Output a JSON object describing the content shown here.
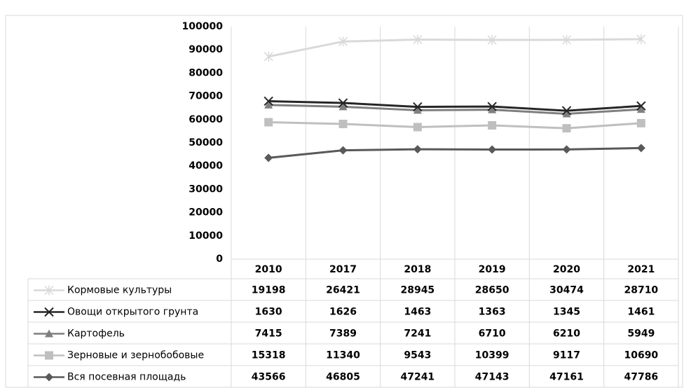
{
  "chart_data": {
    "type": "stacked-line",
    "categories": [
      "2010",
      "2017",
      "2018",
      "2019",
      "2020",
      "2021"
    ],
    "series": [
      {
        "name": "Кормовые культуры",
        "color": "#d9d9d9",
        "marker": "asterisk",
        "values": [
          19198,
          26421,
          28945,
          28650,
          30474,
          28710
        ]
      },
      {
        "name": "Овощи открытого грунта",
        "color": "#262626",
        "marker": "x",
        "values": [
          1630,
          1626,
          1463,
          1363,
          1345,
          1461
        ]
      },
      {
        "name": "Картофель",
        "color": "#7f7f7f",
        "marker": "triangle",
        "values": [
          7415,
          7389,
          7241,
          6710,
          6210,
          5949
        ]
      },
      {
        "name": "Зерновые и зернобобовые",
        "color": "#bfbfbf",
        "marker": "square",
        "values": [
          15318,
          11340,
          9543,
          10399,
          9117,
          10690
        ]
      },
      {
        "name": "Вся посевная площадь",
        "color": "#595959",
        "marker": "diamond",
        "values": [
          43566,
          46805,
          47241,
          47143,
          47161,
          47786
        ]
      }
    ],
    "ylim": [
      0,
      100000
    ],
    "yticks": [
      0,
      10000,
      20000,
      30000,
      40000,
      50000,
      60000,
      70000,
      80000,
      90000,
      100000
    ],
    "grid": false,
    "data_table": true
  }
}
